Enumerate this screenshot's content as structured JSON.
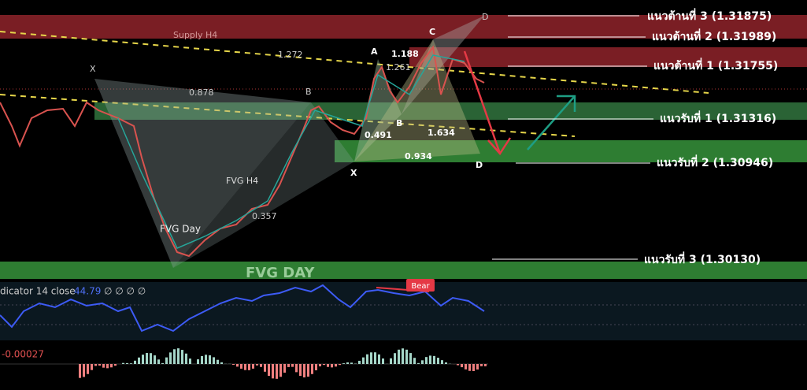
{
  "zones": {
    "supply": "Supply H4",
    "fvg_h4": "FVG H4",
    "fvg_day": "FVG Day",
    "fvg_day_big": "FVG DAY"
  },
  "levels": [
    "แนวต้านที่ 3 (1.31875)",
    "แนวต้านที่ 2 (1.31989)",
    "แนวต้านที่ 1 (1.31755)",
    "แนวรับที่ 1 (1.31316)",
    "แนวรับที่ 2 (1.30946)",
    "แนวรับที่ 3 (1.30130)"
  ],
  "pattern1": {
    "x": "X",
    "b": "B",
    "ratio_xb": "0.878",
    "ratio_bd": "0.357"
  },
  "pattern2": {
    "x": "X",
    "a": "A",
    "b": "B",
    "c": "C",
    "d": "D",
    "d2": "D",
    "ratios": [
      "1.272",
      "1.188",
      "1.261",
      "0.491",
      "1.634",
      "0.934"
    ]
  },
  "indicator": {
    "title": "dicator 14 close",
    "value": "44.79",
    "extras": "∅ ∅ ∅ ∅",
    "badge": "Bear"
  },
  "macd": {
    "value": "-0.00027"
  }
}
